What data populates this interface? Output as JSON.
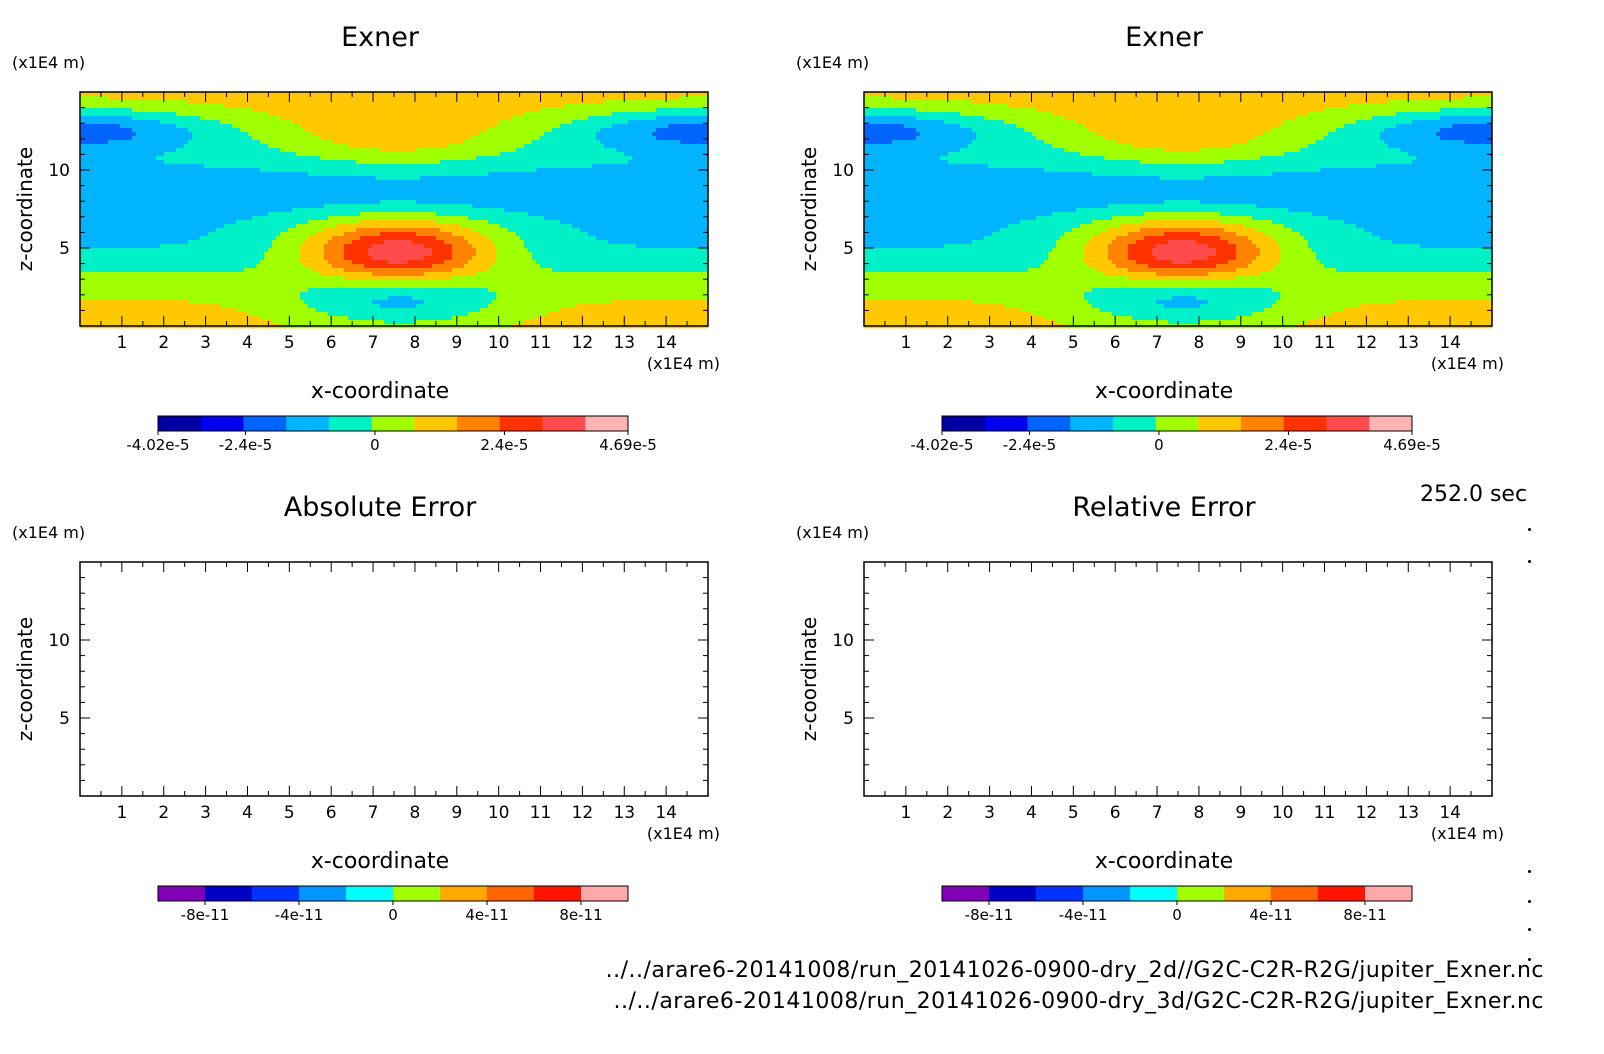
{
  "time_label": "252.0 sec",
  "footer": {
    "file1": "../../arare6-20141008/run_20141026-0900-dry_2d//G2C-C2R-R2G/jupiter_Exner.nc",
    "file2": "../../arare6-20141008/run_20141026-0900-dry_3d/G2C-C2R-R2G/jupiter_Exner.nc"
  },
  "chart_data": [
    {
      "type": "heatmap",
      "title": "Exner",
      "xlabel": "x-coordinate",
      "ylabel": "z-coordinate",
      "x_unit": "(x1E4 m)",
      "y_unit": "(x1E4 m)",
      "xlim": [
        0,
        15
      ],
      "ylim": [
        0,
        15
      ],
      "x_ticks": [
        1,
        2,
        3,
        4,
        5,
        6,
        7,
        8,
        9,
        10,
        11,
        12,
        13,
        14
      ],
      "y_ticks": [
        5,
        10
      ],
      "colorbar": {
        "levels": 11,
        "colors": [
          "#0000a0",
          "#0000ee",
          "#0064ff",
          "#00b4ff",
          "#00f0c8",
          "#a0ff00",
          "#ffc800",
          "#ff8200",
          "#ff3200",
          "#ff4b4b",
          "#ffb4b4"
        ],
        "tick_labels": [
          "-4.02e-5",
          "-2.4e-5",
          "0",
          "2.4e-5",
          "4.69e-5"
        ],
        "tick_values": [
          -4.02e-05,
          -2.4e-05,
          0,
          2.4e-05,
          4.69e-05
        ],
        "range": [
          -4.02e-05,
          4.69e-05
        ]
      }
    },
    {
      "type": "heatmap",
      "title": "Exner",
      "xlabel": "x-coordinate",
      "ylabel": "z-coordinate",
      "x_unit": "(x1E4 m)",
      "y_unit": "(x1E4 m)",
      "xlim": [
        0,
        15
      ],
      "ylim": [
        0,
        15
      ],
      "x_ticks": [
        1,
        2,
        3,
        4,
        5,
        6,
        7,
        8,
        9,
        10,
        11,
        12,
        13,
        14
      ],
      "y_ticks": [
        5,
        10
      ],
      "colorbar": {
        "levels": 11,
        "colors": [
          "#0000a0",
          "#0000ee",
          "#0064ff",
          "#00b4ff",
          "#00f0c8",
          "#a0ff00",
          "#ffc800",
          "#ff8200",
          "#ff3200",
          "#ff4b4b",
          "#ffb4b4"
        ],
        "tick_labels": [
          "-4.02e-5",
          "-2.4e-5",
          "0",
          "2.4e-5",
          "4.69e-5"
        ],
        "tick_values": [
          -4.02e-05,
          -2.4e-05,
          0,
          2.4e-05,
          4.69e-05
        ],
        "range": [
          -4.02e-05,
          4.69e-05
        ]
      }
    },
    {
      "type": "heatmap",
      "title": "Absolute Error",
      "xlabel": "x-coordinate",
      "ylabel": "z-coordinate",
      "x_unit": "(x1E4 m)",
      "y_unit": "(x1E4 m)",
      "xlim": [
        0,
        15
      ],
      "ylim": [
        0,
        15
      ],
      "x_ticks": [
        1,
        2,
        3,
        4,
        5,
        6,
        7,
        8,
        9,
        10,
        11,
        12,
        13,
        14
      ],
      "y_ticks": [
        5,
        10
      ],
      "empty": true,
      "colorbar": {
        "levels": 10,
        "colors": [
          "#8200b4",
          "#0000c8",
          "#0032ff",
          "#0096ff",
          "#00ffff",
          "#a0ff00",
          "#ffaa00",
          "#ff6400",
          "#ff1400",
          "#ffaaaa"
        ],
        "tick_labels": [
          "-8e-11",
          "-4e-11",
          "0",
          "4e-11",
          "8e-11"
        ],
        "tick_values": [
          -8e-11,
          -4e-11,
          0,
          4e-11,
          8e-11
        ],
        "range": [
          -1e-10,
          1e-10
        ]
      }
    },
    {
      "type": "heatmap",
      "title": "Relative Error",
      "xlabel": "x-coordinate",
      "ylabel": "z-coordinate",
      "x_unit": "(x1E4 m)",
      "y_unit": "(x1E4 m)",
      "xlim": [
        0,
        15
      ],
      "ylim": [
        0,
        15
      ],
      "x_ticks": [
        1,
        2,
        3,
        4,
        5,
        6,
        7,
        8,
        9,
        10,
        11,
        12,
        13,
        14
      ],
      "y_ticks": [
        5,
        10
      ],
      "empty": true,
      "colorbar": {
        "levels": 10,
        "colors": [
          "#8200b4",
          "#0000c8",
          "#0032ff",
          "#0096ff",
          "#00ffff",
          "#a0ff00",
          "#ffaa00",
          "#ff6400",
          "#ff1400",
          "#ffaaaa"
        ],
        "tick_labels": [
          "-8e-11",
          "-4e-11",
          "0",
          "4e-11",
          "8e-11"
        ],
        "tick_values": [
          -8e-11,
          -4e-11,
          0,
          4e-11,
          8e-11
        ],
        "range": [
          -1e-10,
          1e-10
        ]
      }
    }
  ]
}
